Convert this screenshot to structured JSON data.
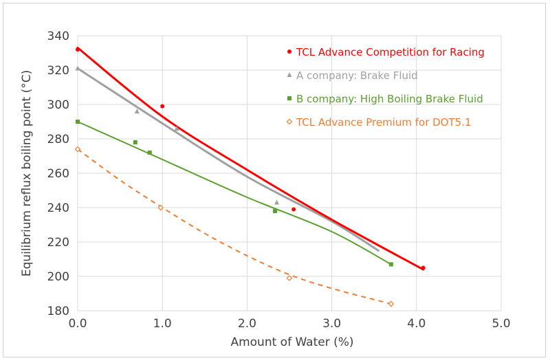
{
  "chart_data": {
    "type": "scatter",
    "title": "",
    "xlabel": "Amount of Water (%)",
    "ylabel": "Equilibrium reflux boiling point (°C)",
    "xlim": [
      0.0,
      5.0
    ],
    "ylim": [
      180,
      340
    ],
    "xticks": [
      0.0,
      1.0,
      2.0,
      3.0,
      4.0,
      5.0
    ],
    "xtick_labels": [
      "0.0",
      "1.0",
      "2.0",
      "3.0",
      "4.0",
      "5.0"
    ],
    "yticks": [
      180,
      200,
      220,
      240,
      260,
      280,
      300,
      320,
      340
    ],
    "ytick_labels": [
      "180",
      "200",
      "220",
      "240",
      "260",
      "280",
      "300",
      "320",
      "340"
    ],
    "grid": "vertical and horizontal gridlines",
    "legend_position": "top-right",
    "series": [
      {
        "name": "TCL Advance Competition for Racing",
        "color": "#ff0000",
        "marker": "circle",
        "points": [
          [
            0.0,
            332
          ],
          [
            1.0,
            299
          ],
          [
            2.55,
            239
          ],
          [
            4.08,
            205
          ]
        ],
        "trend": {
          "style": "solid",
          "width": 3,
          "points": [
            [
              0.0,
              333
            ],
            [
              1.0,
              293
            ],
            [
              2.0,
              262
            ],
            [
              3.0,
              233
            ],
            [
              4.08,
              204
            ]
          ]
        }
      },
      {
        "name": "A company: Brake Fluid",
        "color": "#a0a0a0",
        "marker": "triangle",
        "points": [
          [
            0.0,
            321
          ],
          [
            0.7,
            296
          ],
          [
            1.17,
            286
          ],
          [
            2.35,
            243
          ]
        ],
        "trend": {
          "style": "solid",
          "width": 3,
          "points": [
            [
              0.0,
              321
            ],
            [
              1.0,
              289
            ],
            [
              2.0,
              258
            ],
            [
              3.0,
              232
            ],
            [
              3.55,
              215
            ]
          ]
        }
      },
      {
        "name": "B company: High Boiling Brake Fluid",
        "color": "#5aa02c",
        "marker": "square",
        "points": [
          [
            0.0,
            290
          ],
          [
            0.68,
            278
          ],
          [
            0.85,
            272
          ],
          [
            2.33,
            238
          ],
          [
            3.7,
            207
          ]
        ],
        "trend": {
          "style": "solid",
          "width": 2,
          "points": [
            [
              0.0,
              290
            ],
            [
              1.0,
              268
            ],
            [
              2.0,
              246
            ],
            [
              3.0,
              226
            ],
            [
              3.7,
              207
            ]
          ]
        }
      },
      {
        "name": "TCL Advance Premium for DOT5.1",
        "color": "#ed7d31",
        "marker": "diamond-open",
        "points": [
          [
            0.0,
            274
          ],
          [
            0.98,
            240
          ],
          [
            2.5,
            199
          ],
          [
            3.7,
            184
          ]
        ],
        "trend": {
          "style": "dashed",
          "width": 2,
          "points": [
            [
              0.0,
              274
            ],
            [
              0.5,
              256
            ],
            [
              1.0,
              240
            ],
            [
              1.5,
              225
            ],
            [
              2.0,
              212
            ],
            [
              2.5,
              201
            ],
            [
              3.0,
              193
            ],
            [
              3.7,
              184
            ]
          ]
        }
      }
    ]
  }
}
